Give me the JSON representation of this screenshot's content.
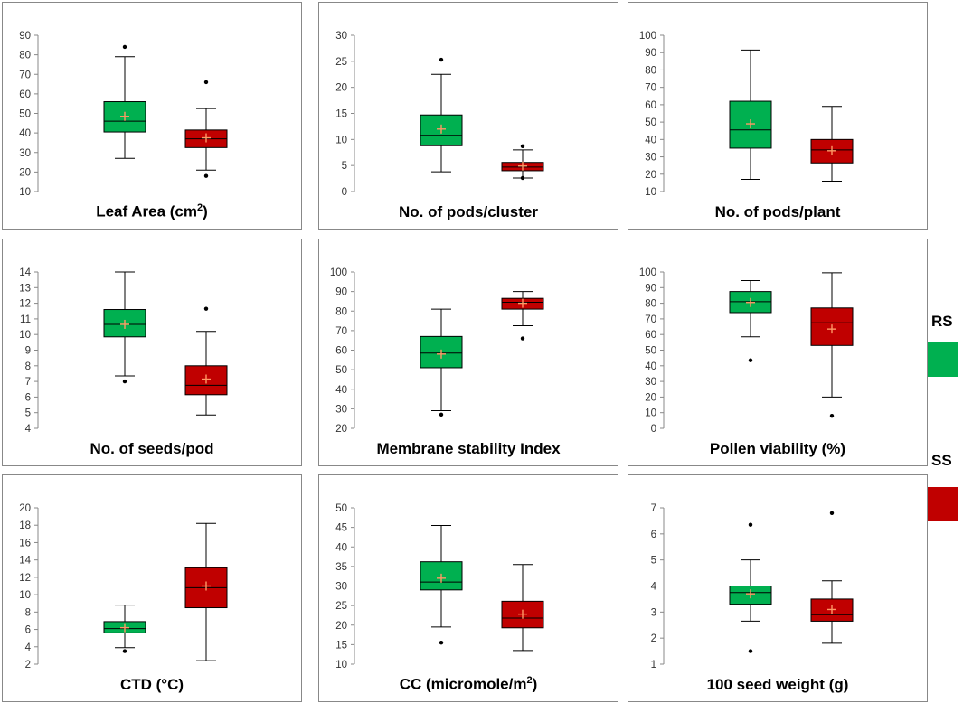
{
  "legend": {
    "items": [
      {
        "label": "RS",
        "color": "#00b050"
      },
      {
        "label": "SS",
        "color": "#c00000"
      }
    ]
  },
  "chart_data": [
    {
      "type": "box",
      "title": "Leaf Area (cm",
      "title_sup": "2",
      "title_after": ")",
      "ylim": [
        10,
        90
      ],
      "ticks": [
        10,
        20,
        30,
        40,
        50,
        60,
        70,
        80,
        90
      ],
      "series": [
        {
          "name": "RS",
          "min": 27,
          "q1": 40.5,
          "median": 46,
          "q3": 56,
          "max": 79,
          "mean": 48.5,
          "outliers": [
            84
          ]
        },
        {
          "name": "SS",
          "min": 21,
          "q1": 32.5,
          "median": 37,
          "q3": 41.5,
          "max": 52.5,
          "mean": 37.5,
          "outliers": [
            18,
            66
          ]
        }
      ]
    },
    {
      "type": "box",
      "title": "No. of pods/cluster",
      "ylim": [
        0,
        30
      ],
      "ticks": [
        0,
        5,
        10,
        15,
        20,
        25,
        30
      ],
      "series": [
        {
          "name": "RS",
          "min": 3.8,
          "q1": 8.8,
          "median": 10.8,
          "q3": 14.7,
          "max": 22.5,
          "mean": 12,
          "outliers": [
            25.3
          ]
        },
        {
          "name": "SS",
          "min": 2.6,
          "q1": 4,
          "median": 4.7,
          "q3": 5.6,
          "max": 8,
          "mean": 4.9,
          "outliers": [
            8.7,
            2.6
          ]
        }
      ]
    },
    {
      "type": "box",
      "title": "No. of pods/plant",
      "ylim": [
        10,
        100
      ],
      "ticks": [
        10,
        20,
        30,
        40,
        50,
        60,
        70,
        80,
        90,
        100
      ],
      "series": [
        {
          "name": "RS",
          "min": 17,
          "q1": 35,
          "median": 45.5,
          "q3": 62,
          "max": 91.5,
          "mean": 49,
          "outliers": []
        },
        {
          "name": "SS",
          "min": 16,
          "q1": 26.5,
          "median": 34,
          "q3": 40,
          "max": 59,
          "mean": 33.5,
          "outliers": []
        }
      ]
    },
    {
      "type": "box",
      "title": "No. of seeds/pod",
      "ylim": [
        4,
        14
      ],
      "ticks": [
        4,
        5,
        6,
        7,
        8,
        9,
        10,
        11,
        12,
        13,
        14
      ],
      "series": [
        {
          "name": "RS",
          "min": 7.35,
          "q1": 9.85,
          "median": 10.65,
          "q3": 11.6,
          "max": 14,
          "mean": 10.65,
          "outliers": [
            7
          ]
        },
        {
          "name": "SS",
          "min": 4.85,
          "q1": 6.15,
          "median": 6.75,
          "q3": 8,
          "max": 10.2,
          "mean": 7.15,
          "outliers": [
            11.65
          ]
        }
      ]
    },
    {
      "type": "box",
      "title": "Membrane stability Index",
      "ylim": [
        20,
        100
      ],
      "ticks": [
        20,
        30,
        40,
        50,
        60,
        70,
        80,
        90,
        100
      ],
      "series": [
        {
          "name": "RS",
          "min": 29,
          "q1": 51,
          "median": 58.5,
          "q3": 67,
          "max": 81,
          "mean": 58,
          "outliers": [
            27
          ]
        },
        {
          "name": "SS",
          "min": 72.5,
          "q1": 81,
          "median": 84.5,
          "q3": 86.5,
          "max": 90,
          "mean": 84,
          "outliers": [
            66
          ]
        }
      ]
    },
    {
      "type": "box",
      "title": "Pollen viability (%)",
      "ylim": [
        0,
        100
      ],
      "ticks": [
        0,
        10,
        20,
        30,
        40,
        50,
        60,
        70,
        80,
        90,
        100
      ],
      "series": [
        {
          "name": "RS",
          "min": 58.5,
          "q1": 74,
          "median": 81,
          "q3": 87.5,
          "max": 94.5,
          "mean": 80.5,
          "outliers": [
            43.5
          ]
        },
        {
          "name": "SS",
          "min": 20,
          "q1": 53,
          "median": 67.5,
          "q3": 77,
          "max": 99.5,
          "mean": 63.5,
          "outliers": [
            8
          ]
        }
      ]
    },
    {
      "type": "box",
      "title": "CTD (°C)",
      "ylim": [
        2,
        20
      ],
      "ticks": [
        2,
        4,
        6,
        8,
        10,
        12,
        14,
        16,
        18,
        20
      ],
      "series": [
        {
          "name": "RS",
          "min": 3.9,
          "q1": 5.6,
          "median": 6.1,
          "q3": 6.9,
          "max": 8.8,
          "mean": 6.2,
          "outliers": [
            3.5
          ]
        },
        {
          "name": "SS",
          "min": 2.4,
          "q1": 8.5,
          "median": 10.8,
          "q3": 13.1,
          "max": 18.2,
          "mean": 11,
          "outliers": []
        }
      ]
    },
    {
      "type": "box",
      "title": "CC (micromole/m",
      "title_sup": "2",
      "title_after": ")",
      "ylim": [
        10,
        50
      ],
      "ticks": [
        10,
        15,
        20,
        25,
        30,
        35,
        40,
        45,
        50
      ],
      "series": [
        {
          "name": "RS",
          "min": 19.5,
          "q1": 29,
          "median": 31,
          "q3": 36.2,
          "max": 45.5,
          "mean": 32,
          "outliers": [
            15.5
          ]
        },
        {
          "name": "SS",
          "min": 13.5,
          "q1": 19.3,
          "median": 21.8,
          "q3": 26.1,
          "max": 35.5,
          "mean": 22.8,
          "outliers": []
        }
      ]
    },
    {
      "type": "box",
      "title": "100 seed weight (g)",
      "ylim": [
        1,
        7
      ],
      "ticks": [
        1,
        2,
        3,
        4,
        5,
        6,
        7
      ],
      "series": [
        {
          "name": "RS",
          "min": 2.65,
          "q1": 3.3,
          "median": 3.75,
          "q3": 4,
          "max": 5,
          "mean": 3.7,
          "outliers": [
            6.35,
            1.5
          ]
        },
        {
          "name": "SS",
          "min": 1.8,
          "q1": 2.65,
          "median": 2.9,
          "q3": 3.5,
          "max": 4.2,
          "mean": 3.1,
          "outliers": [
            6.8
          ]
        }
      ]
    }
  ]
}
